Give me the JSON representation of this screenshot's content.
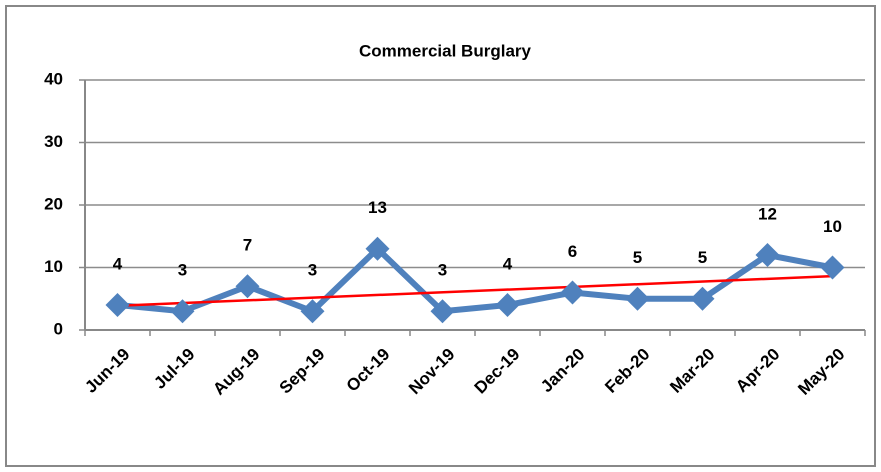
{
  "chart_data": {
    "type": "line",
    "title": "Commercial Burglary",
    "categories": [
      "Jun-19",
      "Jul-19",
      "Aug-19",
      "Sep-19",
      "Oct-19",
      "Nov-19",
      "Dec-19",
      "Jan-20",
      "Feb-20",
      "Mar-20",
      "Apr-20",
      "May-20"
    ],
    "series": [
      {
        "name": "Commercial Burglary",
        "color": "#4f81bd",
        "values": [
          4,
          3,
          7,
          3,
          13,
          3,
          4,
          6,
          5,
          5,
          12,
          10
        ]
      }
    ],
    "ylim": [
      0,
      40
    ],
    "yticks": [
      0,
      10,
      20,
      30,
      40
    ],
    "grid": true,
    "trendline": {
      "type": "linear",
      "color": "#ff0000"
    }
  }
}
